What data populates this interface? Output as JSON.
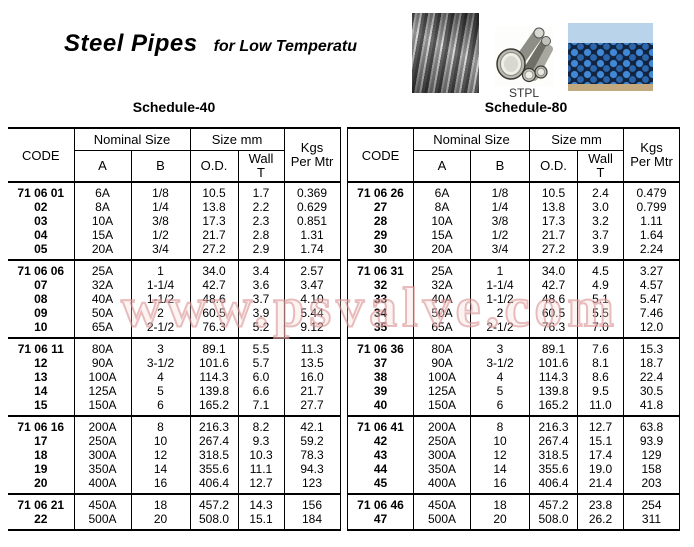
{
  "header": {
    "title_main": "Steel Pipes",
    "title_sub": "for Low Temperatu",
    "photo_caption": "STPL"
  },
  "watermark": "www.psvalve.com",
  "tables": [
    {
      "schedule_label": "Schedule-40",
      "headers": {
        "code": "CODE",
        "nominal_size": "Nominal Size",
        "size_mm": "Size mm",
        "a": "A",
        "b": "B",
        "od": "O.D.",
        "wall": "Wall\nT",
        "kgs": "Kgs\nPer Mtr"
      },
      "columns": [
        "code",
        "a",
        "b",
        "od",
        "wall",
        "kgs"
      ],
      "groups": [
        [
          [
            "71 06 01",
            "6A",
            "1/8",
            "10.5",
            "1.7",
            "0.369"
          ],
          [
            "02",
            "8A",
            "1/4",
            "13.8",
            "2.2",
            "0.629"
          ],
          [
            "03",
            "10A",
            "3/8",
            "17.3",
            "2.3",
            "0.851"
          ],
          [
            "04",
            "15A",
            "1/2",
            "21.7",
            "2.8",
            "1.31"
          ],
          [
            "05",
            "20A",
            "3/4",
            "27.2",
            "2.9",
            "1.74"
          ]
        ],
        [
          [
            "71 06 06",
            "25A",
            "1",
            "34.0",
            "3.4",
            "2.57"
          ],
          [
            "07",
            "32A",
            "1-1/4",
            "42.7",
            "3.6",
            "3.47"
          ],
          [
            "08",
            "40A",
            "1-1/2",
            "48.6",
            "3.7",
            "4.10"
          ],
          [
            "09",
            "50A",
            "2",
            "60.5",
            "3.9",
            "5.44"
          ],
          [
            "10",
            "65A",
            "2-1/2",
            "76.3",
            "5.2",
            "9.12"
          ]
        ],
        [
          [
            "71 06 11",
            "80A",
            "3",
            "89.1",
            "5.5",
            "11.3"
          ],
          [
            "12",
            "90A",
            "3-1/2",
            "101.6",
            "5.7",
            "13.5"
          ],
          [
            "13",
            "100A",
            "4",
            "114.3",
            "6.0",
            "16.0"
          ],
          [
            "14",
            "125A",
            "5",
            "139.8",
            "6.6",
            "21.7"
          ],
          [
            "15",
            "150A",
            "6",
            "165.2",
            "7.1",
            "27.7"
          ]
        ],
        [
          [
            "71 06 16",
            "200A",
            "8",
            "216.3",
            "8.2",
            "42.1"
          ],
          [
            "17",
            "250A",
            "10",
            "267.4",
            "9.3",
            "59.2"
          ],
          [
            "18",
            "300A",
            "12",
            "318.5",
            "10.3",
            "78.3"
          ],
          [
            "19",
            "350A",
            "14",
            "355.6",
            "11.1",
            "94.3"
          ],
          [
            "20",
            "400A",
            "16",
            "406.4",
            "12.7",
            "123"
          ]
        ],
        [
          [
            "71 06 21",
            "450A",
            "18",
            "457.2",
            "14.3",
            "156"
          ],
          [
            "22",
            "500A",
            "20",
            "508.0",
            "15.1",
            "184"
          ]
        ]
      ]
    },
    {
      "schedule_label": "Schedule-80",
      "headers": {
        "code": "CODE",
        "nominal_size": "Nominal Size",
        "size_mm": "Size mm",
        "a": "A",
        "b": "B",
        "od": "O.D.",
        "wall": "Wall\nT",
        "kgs": "Kgs\nPer Mtr"
      },
      "columns": [
        "code",
        "a",
        "b",
        "od",
        "wall",
        "kgs"
      ],
      "groups": [
        [
          [
            "71 06 26",
            "6A",
            "1/8",
            "10.5",
            "2.4",
            "0.479"
          ],
          [
            "27",
            "8A",
            "1/4",
            "13.8",
            "3.0",
            "0.799"
          ],
          [
            "28",
            "10A",
            "3/8",
            "17.3",
            "3.2",
            "1.11"
          ],
          [
            "29",
            "15A",
            "1/2",
            "21.7",
            "3.7",
            "1.64"
          ],
          [
            "30",
            "20A",
            "3/4",
            "27.2",
            "3.9",
            "2.24"
          ]
        ],
        [
          [
            "71 06 31",
            "25A",
            "1",
            "34.0",
            "4.5",
            "3.27"
          ],
          [
            "32",
            "32A",
            "1-1/4",
            "42.7",
            "4.9",
            "4.57"
          ],
          [
            "33",
            "40A",
            "1-1/2",
            "48.6",
            "5.1",
            "5.47"
          ],
          [
            "34",
            "50A",
            "2",
            "60.5",
            "5.5",
            "7.46"
          ],
          [
            "35",
            "65A",
            "2-1/2",
            "76.3",
            "7.0",
            "12.0"
          ]
        ],
        [
          [
            "71 06 36",
            "80A",
            "3",
            "89.1",
            "7.6",
            "15.3"
          ],
          [
            "37",
            "90A",
            "3-1/2",
            "101.6",
            "8.1",
            "18.7"
          ],
          [
            "38",
            "100A",
            "4",
            "114.3",
            "8.6",
            "22.4"
          ],
          [
            "39",
            "125A",
            "5",
            "139.8",
            "9.5",
            "30.5"
          ],
          [
            "40",
            "150A",
            "6",
            "165.2",
            "11.0",
            "41.8"
          ]
        ],
        [
          [
            "71 06 41",
            "200A",
            "8",
            "216.3",
            "12.7",
            "63.8"
          ],
          [
            "42",
            "250A",
            "10",
            "267.4",
            "15.1",
            "93.9"
          ],
          [
            "43",
            "300A",
            "12",
            "318.5",
            "17.4",
            "129"
          ],
          [
            "44",
            "350A",
            "14",
            "355.6",
            "19.0",
            "158"
          ],
          [
            "45",
            "400A",
            "16",
            "406.4",
            "21.4",
            "203"
          ]
        ],
        [
          [
            "71 06 46",
            "450A",
            "18",
            "457.2",
            "23.8",
            "254"
          ],
          [
            "47",
            "500A",
            "20",
            "508.0",
            "26.2",
            "311"
          ]
        ]
      ]
    }
  ]
}
